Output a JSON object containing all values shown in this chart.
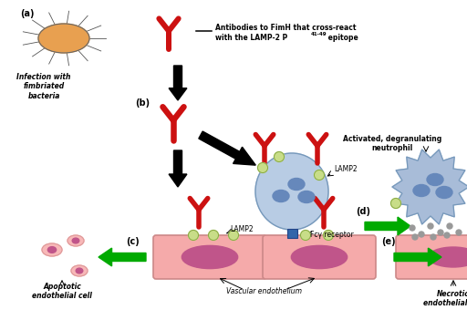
{
  "background_color": "#ffffff",
  "fig_width": 5.12,
  "fig_height": 3.51,
  "dpi": 100,
  "legend_text_line1": "Antibodies to FimH that cross-react",
  "legend_text_line2": "with the LAMP-2 P",
  "legend_text_sub": "41-49",
  "legend_text_end": " epitope",
  "labels": {
    "a": "(a)",
    "b": "(b)",
    "c": "(c)",
    "d": "(d)",
    "e": "(e)"
  },
  "cell_labels": {
    "infection": "Infection with\nfimbriated\nbacteria",
    "apoptotic": "Apoptotic\nendothelial cell",
    "vascular": "Vascular endothelium",
    "necrotic": "Necrotic\nendothelial cell",
    "neutrophil": "Activated, degranulating\nneutrophil",
    "lamp2_top": "LAMP2",
    "lamp2_mid": "LAMP2",
    "fcgamma": "Fcγ receptor"
  },
  "colors": {
    "red": "#cc1111",
    "black": "#000000",
    "green_arrow": "#00aa00",
    "bacteria_fill": "#e8a050",
    "bacteria_outline": "#666666",
    "neutrophil_fill": "#a8bcd8",
    "neutrophil_outline": "#7799bb",
    "smooth_cell_fill": "#b8cce4",
    "smooth_cell_outline": "#7799bb",
    "endothelium_fill": "#f5aaaa",
    "endothelium_outline": "#cc8888",
    "nucleus_fill": "#c0558a",
    "nucleus_fill2": "#6688bb",
    "lamp2_fill": "#c8dd88",
    "lamp2_outline": "#88aa44",
    "receptor_fill": "#3366aa",
    "apoptotic_fill": "#f8b8b8",
    "apoptotic_outline": "#dd9999",
    "necrotic_fill": "#f5aaaa",
    "white": "#ffffff",
    "dark_text": "#333333"
  }
}
